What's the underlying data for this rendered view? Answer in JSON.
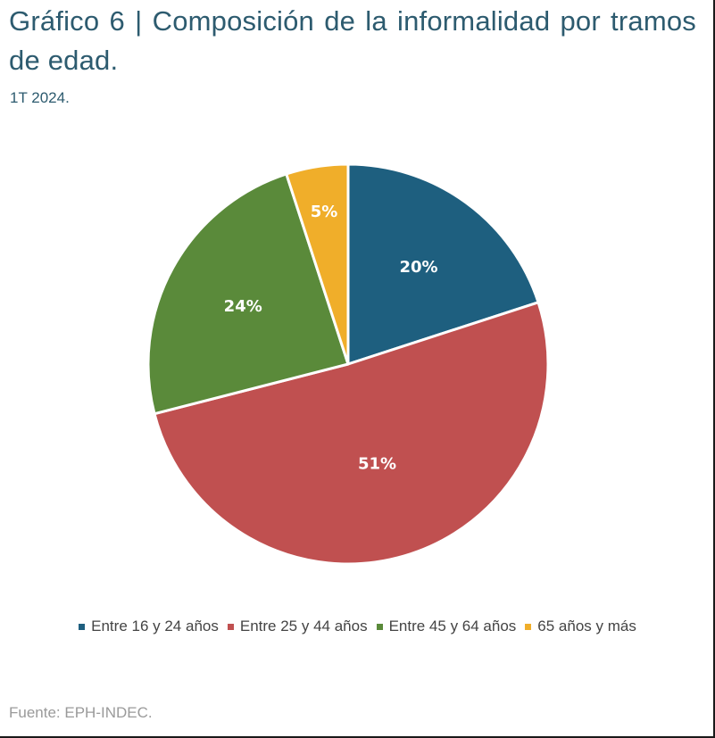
{
  "header": {
    "title": "Gráfico 6 | Composición de la informalidad por tramos de edad.",
    "subtitle": "1T 2024."
  },
  "chart_data": {
    "type": "pie",
    "title": "Gráfico 6 | Composición de la informalidad por tramos de edad.",
    "subtitle": "1T 2024.",
    "categories": [
      "Entre 16 y 24 años",
      "Entre 25 y 44 años",
      "Entre 45 y 64 años",
      "65 años y más"
    ],
    "values": [
      20,
      51,
      24,
      5
    ],
    "data_labels": [
      "20%",
      "51%",
      "24%",
      "5%"
    ],
    "unit": "%",
    "colors": [
      "#1e5f7f",
      "#c05050",
      "#5a8a3a",
      "#f0ae2a"
    ],
    "start_angle_deg": 0,
    "direction": "clockwise",
    "legend_position": "bottom"
  },
  "footer": {
    "source": "Fuente: EPH-INDEC."
  }
}
